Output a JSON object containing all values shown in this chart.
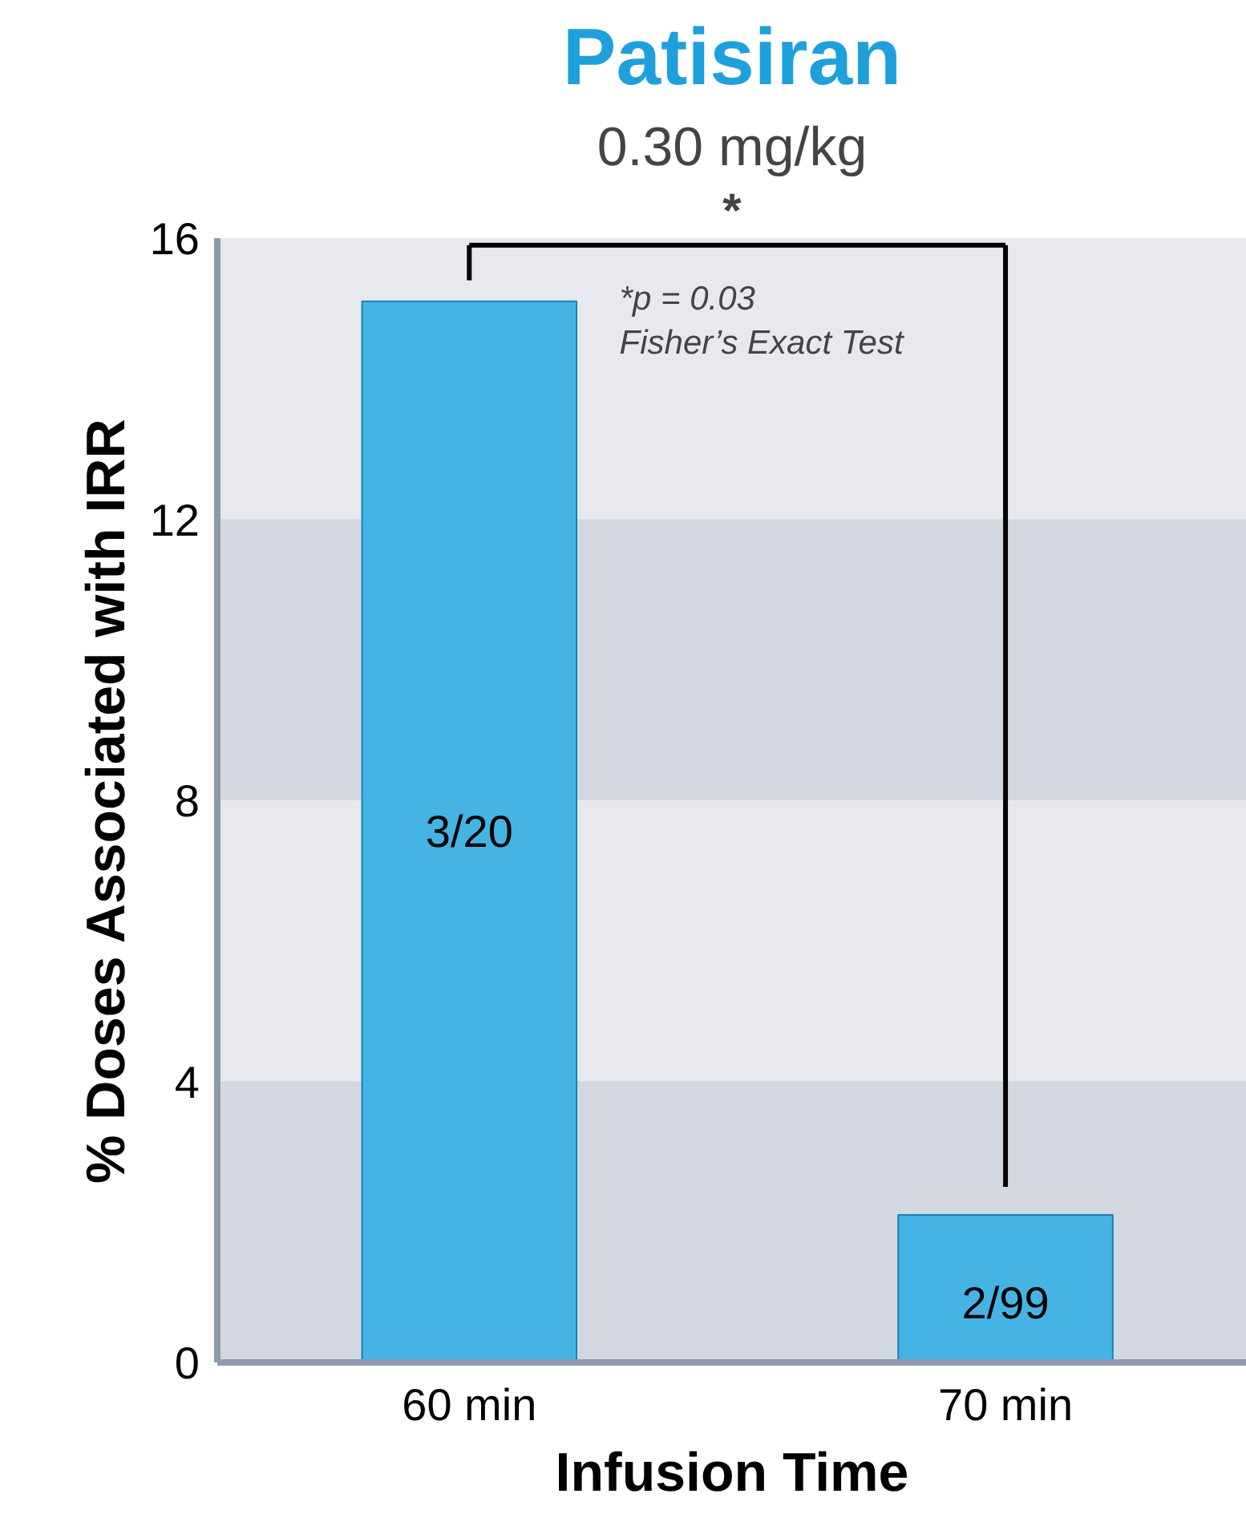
{
  "chart_data": {
    "type": "bar",
    "title": "Patisiran",
    "subtitle": "0.30 mg/kg",
    "xlabel": "Infusion Time",
    "ylabel": "% Doses Associated with IRR",
    "categories": [
      "60 min",
      "70 min"
    ],
    "values": [
      15.1,
      2.1
    ],
    "value_labels": [
      "3/20",
      "2/99"
    ],
    "color": "#45b4e4",
    "ylim": [
      0,
      16
    ],
    "yticks": [
      0,
      4,
      8,
      12,
      16
    ],
    "bands": [
      {
        "axis": "y",
        "from": 0,
        "to": 4,
        "color": "#d3d7e0"
      },
      {
        "axis": "y",
        "from": 8,
        "to": 12,
        "color": "#d3d7e0"
      }
    ],
    "annotations": [
      "*",
      "*p = 0.03\nFisher’s Exact Test"
    ]
  }
}
